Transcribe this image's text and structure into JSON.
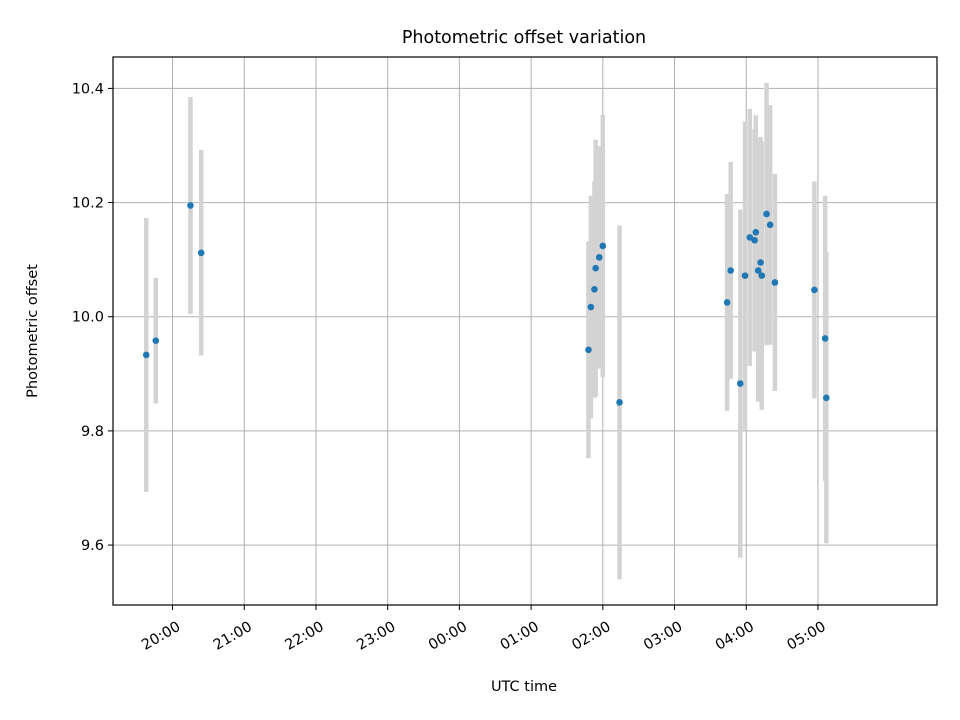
{
  "chart_data": {
    "type": "scatter",
    "title": "Photometric offset variation",
    "xlabel": "UTC time",
    "ylabel": "Photometric offset",
    "grid": true,
    "legend": "none",
    "x_tick_labels": [
      "20:00",
      "21:00",
      "22:00",
      "23:00",
      "00:00",
      "01:00",
      "02:00",
      "03:00",
      "04:00",
      "05:00"
    ],
    "x_tick_hours": [
      20,
      21,
      22,
      23,
      24,
      25,
      26,
      27,
      28,
      29
    ],
    "x_range_hours": [
      19.17,
      30.66
    ],
    "y_ticks": [
      9.6,
      9.8,
      10.0,
      10.2,
      10.4
    ],
    "y_tick_labels": [
      "9.6",
      "9.8",
      "10.0",
      "10.2",
      "10.4"
    ],
    "ylim": [
      9.495,
      10.455
    ],
    "point_color": "#1f77b4",
    "errorbar_color": "#d3d3d3",
    "points": [
      {
        "t": "19:38",
        "y": 9.933,
        "err": 0.24
      },
      {
        "t": "19:46",
        "y": 9.958,
        "err": 0.11
      },
      {
        "t": "20:15",
        "y": 10.195,
        "err": 0.19
      },
      {
        "t": "20:24",
        "y": 10.112,
        "err": 0.18
      },
      {
        "t": "01:48",
        "y": 9.942,
        "err": 0.19
      },
      {
        "t": "01:50",
        "y": 10.017,
        "err": 0.195
      },
      {
        "t": "01:53",
        "y": 10.048,
        "err": 0.19
      },
      {
        "t": "01:54",
        "y": 10.085,
        "err": 0.225
      },
      {
        "t": "01:57",
        "y": 10.104,
        "err": 0.195
      },
      {
        "t": "02:00",
        "y": 10.124,
        "err": 0.23
      },
      {
        "t": "02:14",
        "y": 9.85,
        "err": 0.31
      },
      {
        "t": "03:44",
        "y": 10.025,
        "err": 0.19
      },
      {
        "t": "03:47",
        "y": 10.081,
        "err": 0.19
      },
      {
        "t": "03:55",
        "y": 9.883,
        "err": 0.305
      },
      {
        "t": "03:59",
        "y": 10.072,
        "err": 0.27
      },
      {
        "t": "04:03",
        "y": 10.139,
        "err": 0.225
      },
      {
        "t": "04:07",
        "y": 10.134,
        "err": 0.195
      },
      {
        "t": "04:08",
        "y": 10.148,
        "err": 0.205
      },
      {
        "t": "04:10",
        "y": 10.081,
        "err": 0.23
      },
      {
        "t": "04:12",
        "y": 10.095,
        "err": 0.22
      },
      {
        "t": "04:13",
        "y": 10.072,
        "err": 0.235
      },
      {
        "t": "04:17",
        "y": 10.18,
        "err": 0.23
      },
      {
        "t": "04:20",
        "y": 10.161,
        "err": 0.21
      },
      {
        "t": "04:24",
        "y": 10.06,
        "err": 0.19
      },
      {
        "t": "04:57",
        "y": 10.047,
        "err": 0.19
      },
      {
        "t": "05:06",
        "y": 9.962,
        "err": 0.25
      },
      {
        "t": "05:07",
        "y": 9.858,
        "err": 0.255
      }
    ]
  }
}
